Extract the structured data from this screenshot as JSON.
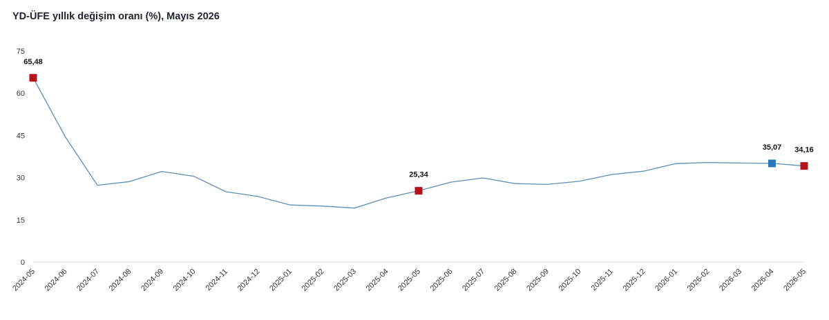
{
  "title": "YD-ÜFE yıllık değişim oranı (%), Mayıs 2026",
  "chart_data": {
    "type": "line",
    "title": "YD-ÜFE yıllık değişim oranı (%), Mayıs 2026",
    "xlabel": "",
    "ylabel": "",
    "ylim": [
      0,
      75
    ],
    "yticks": [
      0,
      15,
      30,
      45,
      60,
      75
    ],
    "grid": false,
    "line_color": "#5b8db8",
    "categories": [
      "2024-05",
      "2024-06",
      "2024-07",
      "2024-08",
      "2024-09",
      "2024-10",
      "2024-11",
      "2024-12",
      "2025-01",
      "2025-02",
      "2025-03",
      "2025-04",
      "2025-05",
      "2025-06",
      "2025-07",
      "2025-08",
      "2025-09",
      "2025-10",
      "2025-11",
      "2025-12",
      "2026-01",
      "2026-02",
      "2026-03",
      "2026-04",
      "2026-05"
    ],
    "series": [
      {
        "values": [
          65.48,
          44.5,
          27.3,
          28.6,
          32.2,
          30.5,
          25.0,
          23.3,
          20.3,
          19.9,
          19.2,
          22.8,
          25.34,
          28.4,
          29.9,
          27.9,
          27.6,
          28.7,
          31.1,
          32.3,
          35.0,
          35.4,
          35.2,
          35.07,
          34.16
        ]
      }
    ],
    "highlighted_points": [
      {
        "category": "2024-05",
        "value": 65.48,
        "label": "65,48",
        "color": "#b5121b"
      },
      {
        "category": "2025-05",
        "value": 25.34,
        "label": "25,34",
        "color": "#b5121b"
      },
      {
        "category": "2026-04",
        "value": 35.07,
        "label": "35,07",
        "color": "#2a7ab8"
      },
      {
        "category": "2026-05",
        "value": 34.16,
        "label": "34,16",
        "color": "#b5121b"
      }
    ]
  }
}
